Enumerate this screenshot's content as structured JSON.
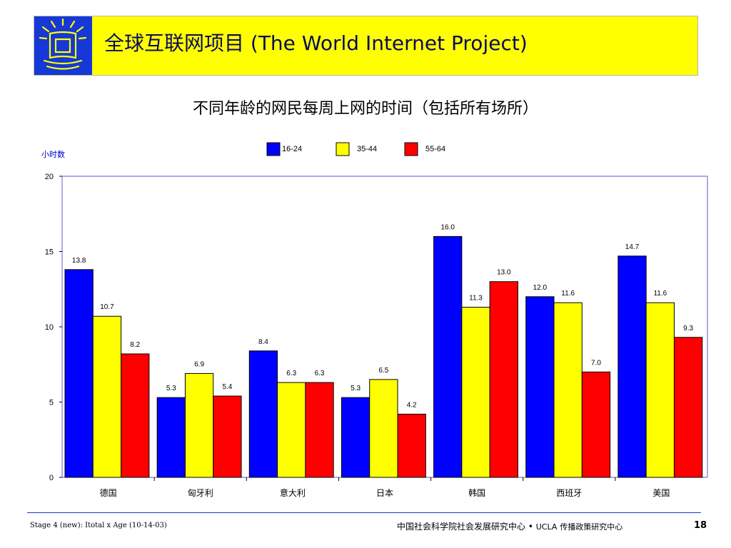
{
  "header": {
    "title": "全球互联网项目 (The World Internet Project)",
    "accent_color": "#ffff00",
    "logo_color": "#1538d6"
  },
  "chart_title": {
    "main": "不同年龄的网民每周上网的时间",
    "paren": "（包括所有场所）"
  },
  "chart_data": {
    "type": "bar",
    "title": "不同年龄的网民每周上网的时间（包括所有场所）",
    "ylabel": "小时数",
    "xlabel": "",
    "ylim": [
      0,
      20
    ],
    "yticks": [
      0,
      5,
      10,
      15,
      20
    ],
    "grid": false,
    "legend_position": "top",
    "categories": [
      "德国",
      "匈牙利",
      "意大利",
      "日本",
      "韩国",
      "西班牙",
      "美国"
    ],
    "series": [
      {
        "name": "16-24",
        "color": "#0000ff",
        "values": [
          13.8,
          5.3,
          8.4,
          5.3,
          16.0,
          12.0,
          14.7
        ],
        "labels": [
          "13.8",
          "5.3",
          "8.4",
          "5.3",
          "16.0",
          "12.0",
          "14.7"
        ]
      },
      {
        "name": "35-44",
        "color": "#ffff00",
        "values": [
          10.7,
          6.9,
          6.3,
          6.5,
          11.3,
          11.6,
          11.6
        ],
        "labels": [
          "10.7",
          "6.9",
          "6.3",
          "6.5",
          "11.3",
          "11.6",
          "11.6"
        ]
      },
      {
        "name": "55-64",
        "color": "#ff0000",
        "values": [
          8.2,
          5.4,
          6.3,
          4.2,
          13.0,
          7.0,
          9.3
        ],
        "labels": [
          "8.2",
          "5.4",
          "6.3",
          "4.2",
          "13.0",
          "7.0",
          "9.3"
        ]
      }
    ]
  },
  "footer": {
    "left": "Stage 4 (new): Itotal x Age (10-14-03)",
    "center_cn": "中国社会科学院社会发展研究中心",
    "center_sep": "•",
    "center_ucla": "UCLA",
    "center_ucla_cn": "传播政策研究中心",
    "page": "18"
  }
}
